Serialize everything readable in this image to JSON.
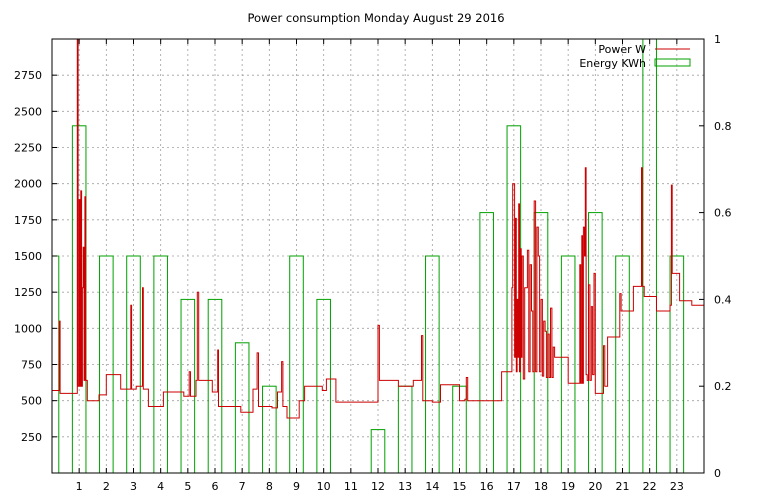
{
  "chart_data": {
    "type": "line",
    "title": "Power consumption Monday August 29 2016",
    "xlabel": "",
    "ylabel": "",
    "y2label": "",
    "grid": true,
    "legend_position": "top-right",
    "xlim": [
      0,
      24
    ],
    "ylim": [
      0,
      3000
    ],
    "y2lim": [
      0,
      1
    ],
    "x_ticks": [
      1,
      2,
      3,
      4,
      5,
      6,
      7,
      8,
      9,
      10,
      11,
      12,
      13,
      14,
      15,
      16,
      17,
      18,
      19,
      20,
      21,
      22,
      23
    ],
    "y_ticks": [
      250,
      500,
      750,
      1000,
      1250,
      1500,
      1750,
      2000,
      2250,
      2500,
      2750
    ],
    "y2_ticks": [
      0,
      0.2,
      0.4,
      0.6,
      0.8,
      1
    ],
    "series": [
      {
        "name": "Power W",
        "axis": "left",
        "color": "#cc0000",
        "style": "step-line",
        "points": [
          [
            0,
            570
          ],
          [
            0.25,
            570
          ],
          [
            0.27,
            1050
          ],
          [
            0.3,
            550
          ],
          [
            0.9,
            550
          ],
          [
            0.93,
            3000
          ],
          [
            0.96,
            600
          ],
          [
            1.0,
            1890
          ],
          [
            1.03,
            600
          ],
          [
            1.06,
            1950
          ],
          [
            1.09,
            600
          ],
          [
            1.12,
            1280
          ],
          [
            1.15,
            1560
          ],
          [
            1.18,
            640
          ],
          [
            1.21,
            1910
          ],
          [
            1.24,
            640
          ],
          [
            1.3,
            500
          ],
          [
            1.7,
            500
          ],
          [
            1.73,
            540
          ],
          [
            1.95,
            540
          ],
          [
            2.0,
            680
          ],
          [
            2.5,
            680
          ],
          [
            2.53,
            580
          ],
          [
            2.85,
            580
          ],
          [
            2.9,
            1160
          ],
          [
            2.93,
            580
          ],
          [
            3.1,
            600
          ],
          [
            3.3,
            600
          ],
          [
            3.33,
            1280
          ],
          [
            3.36,
            580
          ],
          [
            3.55,
            460
          ],
          [
            4.05,
            460
          ],
          [
            4.1,
            560
          ],
          [
            4.8,
            560
          ],
          [
            4.85,
            530
          ],
          [
            5.0,
            530
          ],
          [
            5.05,
            700
          ],
          [
            5.1,
            530
          ],
          [
            5.3,
            640
          ],
          [
            5.35,
            1250
          ],
          [
            5.4,
            640
          ],
          [
            5.85,
            640
          ],
          [
            5.9,
            560
          ],
          [
            6.05,
            560
          ],
          [
            6.1,
            850
          ],
          [
            6.13,
            460
          ],
          [
            6.9,
            460
          ],
          [
            6.95,
            420
          ],
          [
            7.35,
            420
          ],
          [
            7.4,
            580
          ],
          [
            7.5,
            580
          ],
          [
            7.55,
            830
          ],
          [
            7.6,
            460
          ],
          [
            8.05,
            460
          ],
          [
            8.1,
            450
          ],
          [
            8.25,
            450
          ],
          [
            8.3,
            560
          ],
          [
            8.4,
            560
          ],
          [
            8.45,
            770
          ],
          [
            8.5,
            460
          ],
          [
            8.65,
            380
          ],
          [
            9.0,
            380
          ],
          [
            9.1,
            500
          ],
          [
            9.3,
            600
          ],
          [
            9.9,
            600
          ],
          [
            9.95,
            570
          ],
          [
            10.1,
            650
          ],
          [
            10.4,
            650
          ],
          [
            10.45,
            490
          ],
          [
            11.95,
            490
          ],
          [
            12.0,
            1020
          ],
          [
            12.05,
            640
          ],
          [
            12.4,
            640
          ],
          [
            12.7,
            640
          ],
          [
            12.75,
            600
          ],
          [
            13.25,
            600
          ],
          [
            13.3,
            640
          ],
          [
            13.55,
            640
          ],
          [
            13.6,
            950
          ],
          [
            13.65,
            500
          ],
          [
            13.7,
            500
          ],
          [
            14.0,
            490
          ],
          [
            14.3,
            610
          ],
          [
            14.95,
            610
          ],
          [
            15.0,
            500
          ],
          [
            15.2,
            510
          ],
          [
            15.25,
            660
          ],
          [
            15.3,
            500
          ],
          [
            16.5,
            500
          ],
          [
            16.55,
            700
          ],
          [
            16.9,
            700
          ],
          [
            16.93,
            1280
          ],
          [
            16.96,
            2000
          ],
          [
            17.0,
            2000
          ],
          [
            17.03,
            800
          ],
          [
            17.06,
            1760
          ],
          [
            17.09,
            700
          ],
          [
            17.12,
            1200
          ],
          [
            17.15,
            800
          ],
          [
            17.18,
            1860
          ],
          [
            17.21,
            700
          ],
          [
            17.24,
            1550
          ],
          [
            17.27,
            800
          ],
          [
            17.3,
            1500
          ],
          [
            17.35,
            650
          ],
          [
            17.4,
            1280
          ],
          [
            17.45,
            1280
          ],
          [
            17.5,
            1540
          ],
          [
            17.55,
            700
          ],
          [
            17.6,
            1440
          ],
          [
            17.65,
            1120
          ],
          [
            17.7,
            700
          ],
          [
            17.75,
            1880
          ],
          [
            17.8,
            700
          ],
          [
            17.85,
            1700
          ],
          [
            17.9,
            1500
          ],
          [
            17.95,
            700
          ],
          [
            18.0,
            1200
          ],
          [
            18.05,
            670
          ],
          [
            18.1,
            1050
          ],
          [
            18.15,
            980
          ],
          [
            18.2,
            660
          ],
          [
            18.25,
            960
          ],
          [
            18.3,
            660
          ],
          [
            18.35,
            1140
          ],
          [
            18.4,
            660
          ],
          [
            18.45,
            870
          ],
          [
            18.5,
            800
          ],
          [
            18.95,
            800
          ],
          [
            19.0,
            620
          ],
          [
            19.4,
            620
          ],
          [
            19.43,
            1440
          ],
          [
            19.46,
            620
          ],
          [
            19.5,
            1640
          ],
          [
            19.53,
            620
          ],
          [
            19.56,
            1700
          ],
          [
            19.6,
            1500
          ],
          [
            19.63,
            2110
          ],
          [
            19.66,
            680
          ],
          [
            19.7,
            640
          ],
          [
            19.75,
            1300
          ],
          [
            19.8,
            640
          ],
          [
            19.85,
            1150
          ],
          [
            19.9,
            680
          ],
          [
            19.95,
            1380
          ],
          [
            20.0,
            550
          ],
          [
            20.25,
            550
          ],
          [
            20.3,
            880
          ],
          [
            20.35,
            600
          ],
          [
            20.45,
            940
          ],
          [
            20.85,
            940
          ],
          [
            20.9,
            1240
          ],
          [
            20.95,
            1120
          ],
          [
            21.35,
            1120
          ],
          [
            21.4,
            1290
          ],
          [
            21.65,
            1290
          ],
          [
            21.7,
            2110
          ],
          [
            21.73,
            1290
          ],
          [
            21.8,
            1220
          ],
          [
            22.2,
            1220
          ],
          [
            22.25,
            1120
          ],
          [
            22.7,
            1120
          ],
          [
            22.75,
            1160
          ],
          [
            22.8,
            1990
          ],
          [
            22.83,
            1380
          ],
          [
            23.05,
            1380
          ],
          [
            23.1,
            1190
          ],
          [
            23.5,
            1190
          ],
          [
            23.55,
            1160
          ],
          [
            23.95,
            1160
          ],
          [
            24.0,
            1550
          ]
        ]
      },
      {
        "name": "Energy KWh",
        "axis": "right",
        "color": "#00a000",
        "style": "boxes",
        "bars": [
          [
            0,
            0.5
          ],
          [
            1,
            0.8
          ],
          [
            2,
            0.5
          ],
          [
            3,
            0.5
          ],
          [
            4,
            0.5
          ],
          [
            5,
            0.4
          ],
          [
            6,
            0.4
          ],
          [
            7,
            0.3
          ],
          [
            8,
            0.2
          ],
          [
            9,
            0.5
          ],
          [
            10,
            0.4
          ],
          [
            11,
            0
          ],
          [
            12,
            0.1
          ],
          [
            13,
            0.2
          ],
          [
            14,
            0.5
          ],
          [
            15,
            0.2
          ],
          [
            16,
            0.6
          ],
          [
            17,
            0.8
          ],
          [
            18,
            0.6
          ],
          [
            19,
            0.5
          ],
          [
            20,
            0.6
          ],
          [
            21,
            0.5
          ],
          [
            22,
            1.0
          ],
          [
            23,
            0.5
          ]
        ],
        "bar_width": 0.5
      }
    ]
  }
}
